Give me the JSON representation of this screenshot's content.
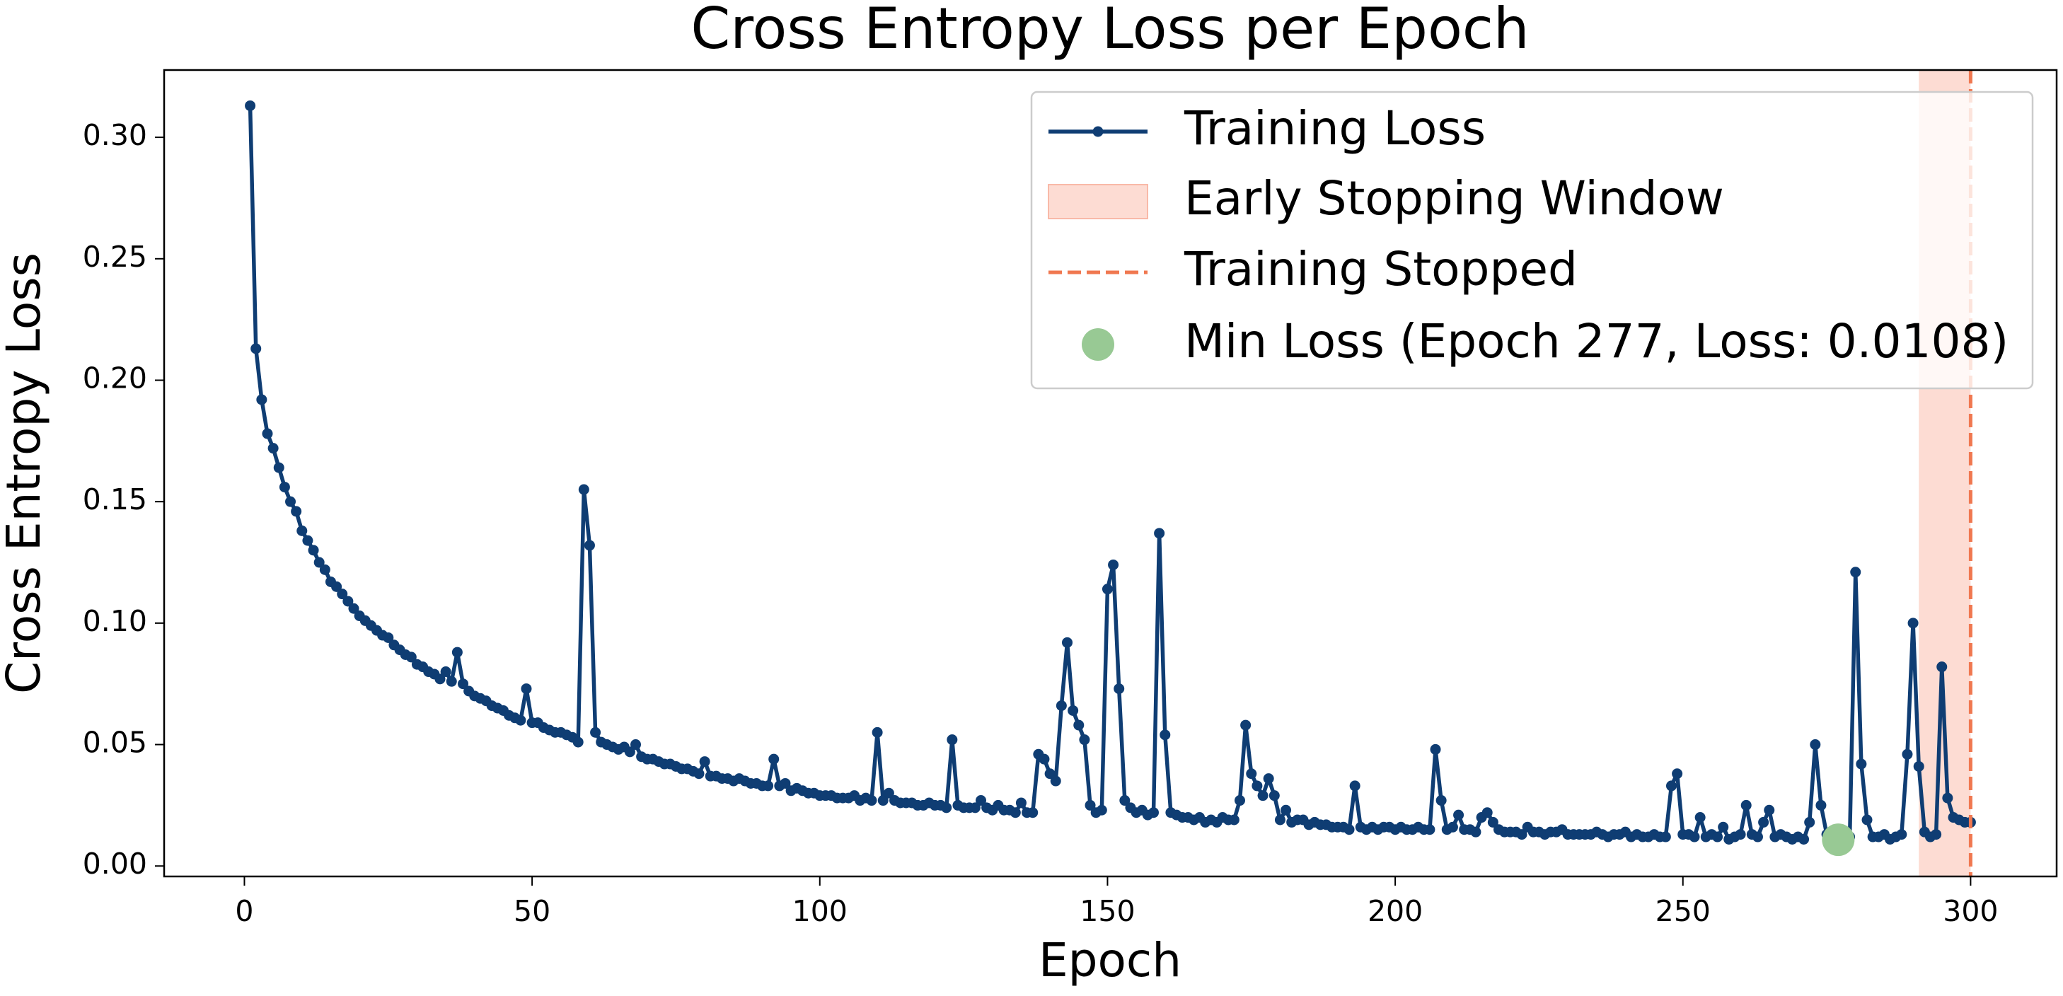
{
  "chart_data": {
    "type": "line",
    "title": "Cross Entropy Loss per Epoch",
    "xlabel": "Epoch",
    "ylabel": "Cross Entropy Loss",
    "x": [
      1,
      2,
      3,
      4,
      5,
      6,
      7,
      8,
      9,
      10,
      11,
      12,
      13,
      14,
      15,
      16,
      17,
      18,
      19,
      20,
      21,
      22,
      23,
      24,
      25,
      26,
      27,
      28,
      29,
      30,
      31,
      32,
      33,
      34,
      35,
      36,
      37,
      38,
      39,
      40,
      41,
      42,
      43,
      44,
      45,
      46,
      47,
      48,
      49,
      50,
      51,
      52,
      53,
      54,
      55,
      56,
      57,
      58,
      59,
      60,
      61,
      62,
      63,
      64,
      65,
      66,
      67,
      68,
      69,
      70,
      71,
      72,
      73,
      74,
      75,
      76,
      77,
      78,
      79,
      80,
      81,
      82,
      83,
      84,
      85,
      86,
      87,
      88,
      89,
      90,
      91,
      92,
      93,
      94,
      95,
      96,
      97,
      98,
      99,
      100,
      101,
      102,
      103,
      104,
      105,
      106,
      107,
      108,
      109,
      110,
      111,
      112,
      113,
      114,
      115,
      116,
      117,
      118,
      119,
      120,
      121,
      122,
      123,
      124,
      125,
      126,
      127,
      128,
      129,
      130,
      131,
      132,
      133,
      134,
      135,
      136,
      137,
      138,
      139,
      140,
      141,
      142,
      143,
      144,
      145,
      146,
      147,
      148,
      149,
      150,
      151,
      152,
      153,
      154,
      155,
      156,
      157,
      158,
      159,
      160,
      161,
      162,
      163,
      164,
      165,
      166,
      167,
      168,
      169,
      170,
      171,
      172,
      173,
      174,
      175,
      176,
      177,
      178,
      179,
      180,
      181,
      182,
      183,
      184,
      185,
      186,
      187,
      188,
      189,
      190,
      191,
      192,
      193,
      194,
      195,
      196,
      197,
      198,
      199,
      200,
      201,
      202,
      203,
      204,
      205,
      206,
      207,
      208,
      209,
      210,
      211,
      212,
      213,
      214,
      215,
      216,
      217,
      218,
      219,
      220,
      221,
      222,
      223,
      224,
      225,
      226,
      227,
      228,
      229,
      230,
      231,
      232,
      233,
      234,
      235,
      236,
      237,
      238,
      239,
      240,
      241,
      242,
      243,
      244,
      245,
      246,
      247,
      248,
      249,
      250,
      251,
      252,
      253,
      254,
      255,
      256,
      257,
      258,
      259,
      260,
      261,
      262,
      263,
      264,
      265,
      266,
      267,
      268,
      269,
      270,
      271,
      272,
      273,
      274,
      275,
      276,
      277,
      278,
      279,
      280,
      281,
      282,
      283,
      284,
      285,
      286,
      287,
      288,
      289,
      290,
      291,
      292,
      293,
      294,
      295,
      296,
      297,
      298,
      299,
      300
    ],
    "series": [
      {
        "name": "Training Loss",
        "color": "#0f3d73",
        "values": [
          0.313,
          0.213,
          0.192,
          0.178,
          0.172,
          0.164,
          0.156,
          0.15,
          0.146,
          0.138,
          0.134,
          0.13,
          0.125,
          0.122,
          0.117,
          0.115,
          0.112,
          0.109,
          0.106,
          0.103,
          0.101,
          0.099,
          0.097,
          0.095,
          0.094,
          0.091,
          0.089,
          0.087,
          0.086,
          0.083,
          0.082,
          0.08,
          0.079,
          0.077,
          0.08,
          0.076,
          0.088,
          0.075,
          0.072,
          0.07,
          0.069,
          0.068,
          0.066,
          0.065,
          0.064,
          0.062,
          0.061,
          0.06,
          0.073,
          0.059,
          0.059,
          0.057,
          0.056,
          0.055,
          0.055,
          0.054,
          0.053,
          0.051,
          0.155,
          0.132,
          0.055,
          0.051,
          0.05,
          0.049,
          0.048,
          0.049,
          0.047,
          0.05,
          0.045,
          0.044,
          0.044,
          0.043,
          0.042,
          0.042,
          0.041,
          0.04,
          0.04,
          0.039,
          0.038,
          0.043,
          0.037,
          0.037,
          0.036,
          0.036,
          0.035,
          0.036,
          0.035,
          0.034,
          0.034,
          0.033,
          0.033,
          0.044,
          0.033,
          0.034,
          0.031,
          0.032,
          0.031,
          0.03,
          0.03,
          0.029,
          0.029,
          0.029,
          0.028,
          0.028,
          0.028,
          0.029,
          0.027,
          0.028,
          0.027,
          0.055,
          0.027,
          0.03,
          0.027,
          0.026,
          0.026,
          0.026,
          0.025,
          0.025,
          0.026,
          0.025,
          0.025,
          0.024,
          0.052,
          0.025,
          0.024,
          0.024,
          0.024,
          0.027,
          0.024,
          0.023,
          0.025,
          0.023,
          0.023,
          0.022,
          0.026,
          0.022,
          0.022,
          0.046,
          0.044,
          0.038,
          0.035,
          0.066,
          0.092,
          0.064,
          0.058,
          0.052,
          0.025,
          0.022,
          0.023,
          0.114,
          0.124,
          0.073,
          0.027,
          0.024,
          0.022,
          0.023,
          0.021,
          0.022,
          0.137,
          0.054,
          0.022,
          0.021,
          0.02,
          0.02,
          0.019,
          0.02,
          0.018,
          0.019,
          0.018,
          0.02,
          0.019,
          0.019,
          0.027,
          0.058,
          0.038,
          0.033,
          0.029,
          0.036,
          0.029,
          0.019,
          0.023,
          0.018,
          0.019,
          0.019,
          0.017,
          0.018,
          0.017,
          0.017,
          0.016,
          0.016,
          0.016,
          0.015,
          0.033,
          0.016,
          0.015,
          0.016,
          0.015,
          0.016,
          0.016,
          0.015,
          0.016,
          0.015,
          0.015,
          0.016,
          0.015,
          0.015,
          0.048,
          0.027,
          0.015,
          0.016,
          0.021,
          0.015,
          0.015,
          0.014,
          0.02,
          0.022,
          0.018,
          0.015,
          0.014,
          0.014,
          0.014,
          0.013,
          0.016,
          0.014,
          0.014,
          0.013,
          0.014,
          0.014,
          0.015,
          0.013,
          0.013,
          0.013,
          0.013,
          0.013,
          0.014,
          0.013,
          0.012,
          0.013,
          0.013,
          0.014,
          0.012,
          0.013,
          0.012,
          0.012,
          0.013,
          0.012,
          0.012,
          0.033,
          0.038,
          0.013,
          0.013,
          0.012,
          0.02,
          0.012,
          0.013,
          0.012,
          0.016,
          0.011,
          0.012,
          0.013,
          0.025,
          0.013,
          0.012,
          0.018,
          0.023,
          0.012,
          0.013,
          0.012,
          0.011,
          0.012,
          0.011,
          0.018,
          0.05,
          0.025,
          0.013,
          0.012,
          0.0108,
          0.012,
          0.012,
          0.121,
          0.042,
          0.019,
          0.012,
          0.012,
          0.013,
          0.011,
          0.012,
          0.013,
          0.046,
          0.1,
          0.041,
          0.014,
          0.012,
          0.013,
          0.082,
          0.028,
          0.02,
          0.019,
          0.018,
          0.018
        ]
      }
    ],
    "early_stopping": {
      "name": "Early Stopping Window",
      "start": 291,
      "end": 300,
      "color": "#fddcd3"
    },
    "stop": {
      "name": "Training Stopped",
      "x": 300,
      "color": "#f07850"
    },
    "min_point": {
      "name": "Min Loss (Epoch 277, Loss: 0.0108)",
      "x": 277,
      "y": 0.0108,
      "color": "#98c994"
    },
    "xlim": [
      -13.95,
      314.95
    ],
    "ylim": [
      -0.0043,
      0.3277
    ],
    "xticks": [
      0,
      50,
      100,
      150,
      200,
      250,
      300
    ],
    "yticks": [
      {
        "value": 0,
        "label": "0.00"
      },
      {
        "value": 0.05,
        "label": "0.05"
      },
      {
        "value": 0.1,
        "label": "0.10"
      },
      {
        "value": 0.15,
        "label": "0.15"
      },
      {
        "value": 0.2,
        "label": "0.20"
      },
      {
        "value": 0.25,
        "label": "0.25"
      },
      {
        "value": 0.3,
        "label": "0.30"
      }
    ],
    "legend": "upper right"
  }
}
